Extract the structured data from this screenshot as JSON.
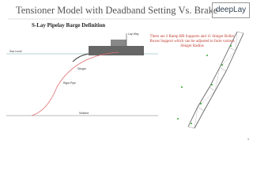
{
  "header": {
    "title": "Tensioner Model with Deadband Setting Vs. Brake",
    "logo": "deepLay"
  },
  "subtitle": "S-Lay Pipelay Barge Definition",
  "note": "There are 2 Ramp RB Supports and 11 Stinger Roller Boxes Support which can be adjusted to form various Stinger Radius",
  "diagram_labels": {
    "sea_level": "Sea Level",
    "lay_way": "Lay Way",
    "stinger": "Stinger",
    "rigid_pipe": "Rigid Pipe",
    "seabed": "Seabed"
  },
  "page_number": "4"
}
